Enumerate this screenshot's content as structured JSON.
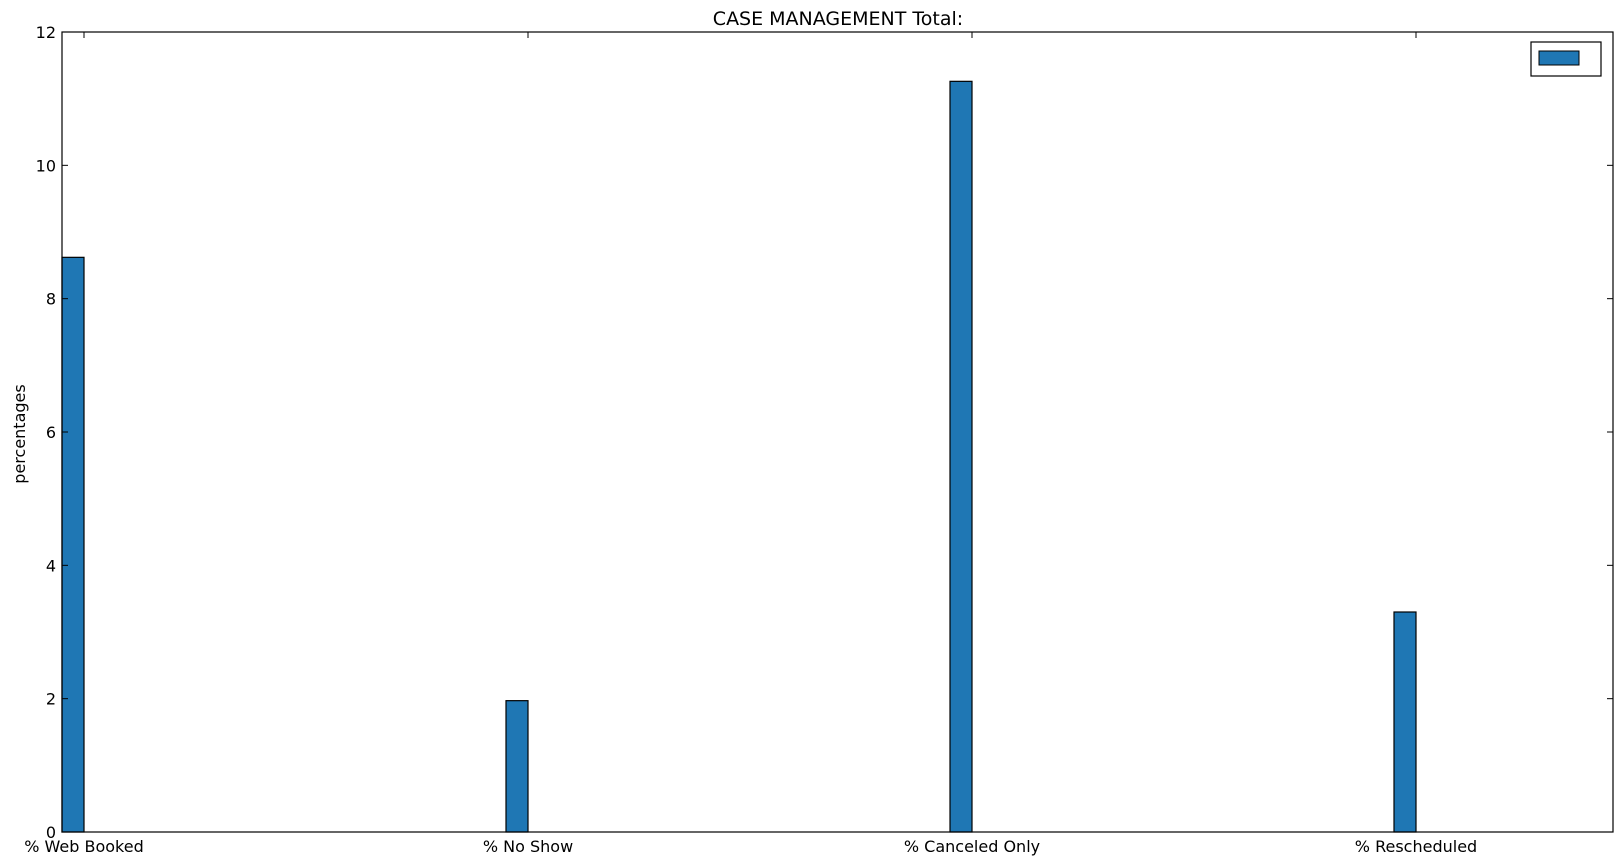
{
  "chart_data": {
    "type": "bar",
    "title": "CASE MANAGEMENT Total:",
    "xlabel": "",
    "ylabel": "percentages",
    "categories": [
      "% Web Booked",
      "% No Show",
      "% Canceled Only",
      "% Rescheduled"
    ],
    "series": [
      {
        "values": [
          8.62,
          1.97,
          11.26,
          3.3
        ],
        "color": "#1f77b4"
      }
    ],
    "ylim": [
      0,
      12
    ],
    "yticks": [
      "0",
      "2",
      "4",
      "6",
      "8",
      "10",
      "12"
    ],
    "grid": false,
    "legend": {
      "placement": "top-right",
      "entries": [
        ""
      ]
    }
  }
}
